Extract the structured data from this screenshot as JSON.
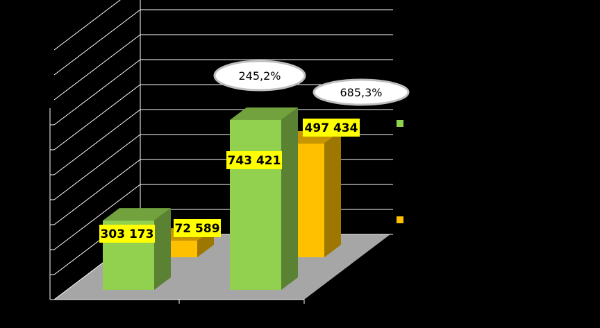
{
  "chart_data": {
    "type": "bar",
    "variant": "3d-clustered-column",
    "categories": [
      "",
      ""
    ],
    "series": [
      {
        "values": [
          303173,
          743421
        ],
        "color": "#92D050",
        "value_labels": [
          "303 173",
          "743 421"
        ]
      },
      {
        "values": [
          72589,
          497434
        ],
        "color": "#FFC000",
        "value_labels": [
          "72 589",
          "497 434"
        ]
      }
    ],
    "growth_labels": [
      "245,2%",
      "685,3%"
    ],
    "ylim": [
      0,
      1000000
    ],
    "grid": true,
    "legend": "right",
    "background": "#000000",
    "floor_color": "#A6A6A6"
  }
}
